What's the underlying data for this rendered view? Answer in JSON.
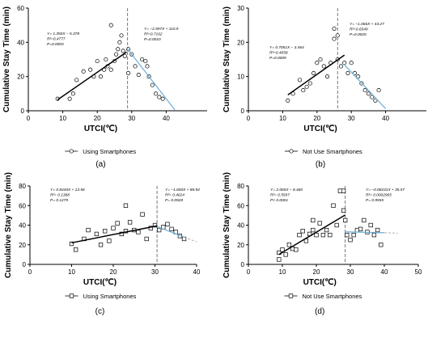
{
  "chart_data": [
    {
      "type": "scatter",
      "panel_label": "(a)",
      "legend": "Using Smartphones",
      "xlabel": "UTCI(℃)",
      "ylabel": "Cumulative Stay Time (min)",
      "xlim": [
        0,
        50
      ],
      "ylim": [
        0,
        60
      ],
      "xticks": [
        0,
        10,
        20,
        30,
        40
      ],
      "yticks": [
        0,
        20,
        40,
        60
      ],
      "marker": "circle",
      "breakpoint_x": 28.8,
      "points": [
        [
          8.5,
          7
        ],
        [
          12,
          7
        ],
        [
          13,
          10
        ],
        [
          14,
          18
        ],
        [
          16,
          23
        ],
        [
          18,
          24
        ],
        [
          19,
          20
        ],
        [
          20,
          29
        ],
        [
          21,
          20
        ],
        [
          22,
          24
        ],
        [
          22.5,
          30
        ],
        [
          23,
          26
        ],
        [
          24,
          50
        ],
        [
          24,
          24
        ],
        [
          25,
          29
        ],
        [
          25.5,
          33
        ],
        [
          26,
          36
        ],
        [
          26.5,
          40
        ],
        [
          27,
          44
        ],
        [
          27.5,
          35
        ],
        [
          28,
          32
        ],
        [
          29,
          36
        ],
        [
          29,
          22
        ],
        [
          30,
          33
        ],
        [
          31,
          26
        ],
        [
          32,
          21
        ],
        [
          33,
          30
        ],
        [
          34,
          29
        ],
        [
          34.5,
          26
        ],
        [
          35,
          20
        ],
        [
          36,
          15
        ],
        [
          37,
          10
        ],
        [
          38,
          8
        ],
        [
          39,
          7
        ]
      ],
      "fits": [
        {
          "equation": "Y= 1.393X − 5.378",
          "r2": "R²=0.4777",
          "p": "P=0.0003",
          "x_range": [
            8.5,
            28.5
          ],
          "color": "#000000"
        },
        {
          "equation": "Y= −2.597X + 110.9",
          "r2": "R²=0.7162",
          "p": "P=0.0010",
          "x_range": [
            28.5,
            42.5
          ],
          "color": "#6baed6"
        }
      ]
    },
    {
      "type": "scatter",
      "panel_label": "(b)",
      "legend": "Not Use Smartphones",
      "xlabel": "UTCI(℃)",
      "ylabel": "Cumulative Stay Time (min)",
      "xlim": [
        0,
        50
      ],
      "ylim": [
        0,
        30
      ],
      "xticks": [
        0,
        10,
        20,
        30,
        40
      ],
      "yticks": [
        0,
        10,
        20,
        30
      ],
      "marker": "circle",
      "breakpoint_x": 26,
      "points": [
        [
          11.5,
          3
        ],
        [
          13,
          5
        ],
        [
          15,
          9
        ],
        [
          16,
          6
        ],
        [
          17,
          7
        ],
        [
          18,
          8
        ],
        [
          19,
          11
        ],
        [
          20,
          14
        ],
        [
          21,
          15
        ],
        [
          22,
          13
        ],
        [
          23,
          10
        ],
        [
          24,
          14
        ],
        [
          25,
          24
        ],
        [
          25,
          21
        ],
        [
          26,
          22
        ],
        [
          26,
          15
        ],
        [
          27,
          13
        ],
        [
          28,
          14
        ],
        [
          29,
          11
        ],
        [
          30,
          14
        ],
        [
          31,
          11
        ],
        [
          32,
          10
        ],
        [
          33,
          8
        ],
        [
          34,
          6
        ],
        [
          35,
          5
        ],
        [
          36,
          4
        ],
        [
          37,
          3
        ],
        [
          38,
          6
        ]
      ],
      "fits": [
        {
          "equation": "Y= 0.7051X − 3.464",
          "r2": "R²=0.4658",
          "p": "P=0.0009",
          "x_range": [
            11.5,
            28
          ],
          "color": "#000000"
        },
        {
          "equation": "Y= −1.066X + 43.27",
          "r2": "R²=0.6549",
          "p": "P=0.0025",
          "x_range": [
            28,
            40
          ],
          "color": "#6baed6"
        }
      ]
    },
    {
      "type": "scatter",
      "panel_label": "(c)",
      "legend": "Using Smartphones",
      "xlabel": "UTCI(℃)",
      "ylabel": "Cumulative Stay Time (min)",
      "xlim": [
        0,
        40
      ],
      "ylim": [
        0,
        80
      ],
      "xticks": [
        0,
        10,
        20,
        30,
        40
      ],
      "yticks": [
        0,
        20,
        40,
        60,
        80
      ],
      "marker": "square",
      "breakpoint_x": 30.5,
      "points": [
        [
          10,
          21
        ],
        [
          11,
          15
        ],
        [
          13,
          26
        ],
        [
          14,
          35
        ],
        [
          16,
          31
        ],
        [
          17,
          20
        ],
        [
          18,
          34
        ],
        [
          19,
          24
        ],
        [
          20,
          37
        ],
        [
          21,
          42
        ],
        [
          22,
          31
        ],
        [
          23,
          60
        ],
        [
          23,
          34
        ],
        [
          24,
          43
        ],
        [
          25,
          35
        ],
        [
          26,
          33
        ],
        [
          27,
          51
        ],
        [
          28,
          26
        ],
        [
          29,
          37
        ],
        [
          30,
          40
        ],
        [
          31,
          35
        ],
        [
          32,
          38
        ],
        [
          33,
          41
        ],
        [
          34,
          36
        ],
        [
          35,
          33
        ],
        [
          36,
          29
        ],
        [
          37,
          26
        ]
      ],
      "fits": [
        {
          "equation": "Y= 0.8445X + 13.56",
          "r2": "R²= 0.1388",
          "p": "P= 0.1279",
          "x_range": [
            10,
            30.5
          ],
          "color": "#000000"
        },
        {
          "equation": "Y= −1.650X + 88.94",
          "r2": "R²= 0.4624",
          "p": "P= 0.0928",
          "x_range": [
            30.5,
            37
          ],
          "color": "#6baed6"
        }
      ]
    },
    {
      "type": "scatter",
      "panel_label": "(d)",
      "legend": "Not Use Smartphones",
      "xlabel": "UTCI(℃)",
      "ylabel": "Cumulative Stay Time (min)",
      "xlim": [
        0,
        50
      ],
      "ylim": [
        0,
        80
      ],
      "xticks": [
        0,
        10,
        20,
        30,
        40,
        50
      ],
      "yticks": [
        0,
        20,
        40,
        60,
        80
      ],
      "marker": "square",
      "breakpoint_x": 28.5,
      "points": [
        [
          9,
          5
        ],
        [
          9,
          12
        ],
        [
          10,
          15
        ],
        [
          11,
          10
        ],
        [
          12,
          20
        ],
        [
          13,
          16
        ],
        [
          14,
          15
        ],
        [
          15,
          30
        ],
        [
          16,
          34
        ],
        [
          17,
          24
        ],
        [
          18,
          31
        ],
        [
          19,
          45
        ],
        [
          19,
          35
        ],
        [
          20,
          30
        ],
        [
          21,
          42
        ],
        [
          22,
          30
        ],
        [
          23,
          35
        ],
        [
          24,
          30
        ],
        [
          25,
          60
        ],
        [
          26,
          40
        ],
        [
          27,
          75
        ],
        [
          28,
          75
        ],
        [
          28,
          55
        ],
        [
          28.5,
          45
        ],
        [
          29,
          30
        ],
        [
          30,
          25
        ],
        [
          31,
          30
        ],
        [
          32,
          35
        ],
        [
          33,
          36
        ],
        [
          34,
          45
        ],
        [
          35,
          33
        ],
        [
          36,
          40
        ],
        [
          37,
          30
        ],
        [
          38,
          35
        ],
        [
          39,
          20
        ]
      ],
      "fits": [
        {
          "equation": "Y= 2.065X − 8.460",
          "r2": "R²= 0.5597",
          "p": "P< 0.0001",
          "x_range": [
            9,
            28.5
          ],
          "color": "#000000"
        },
        {
          "equation": "Y= −0.08231X + 35.57",
          "r2": "R²= 0.0002965",
          "p": "P= 0.9555",
          "x_range": [
            28.5,
            40
          ],
          "color": "#6baed6"
        }
      ]
    }
  ]
}
